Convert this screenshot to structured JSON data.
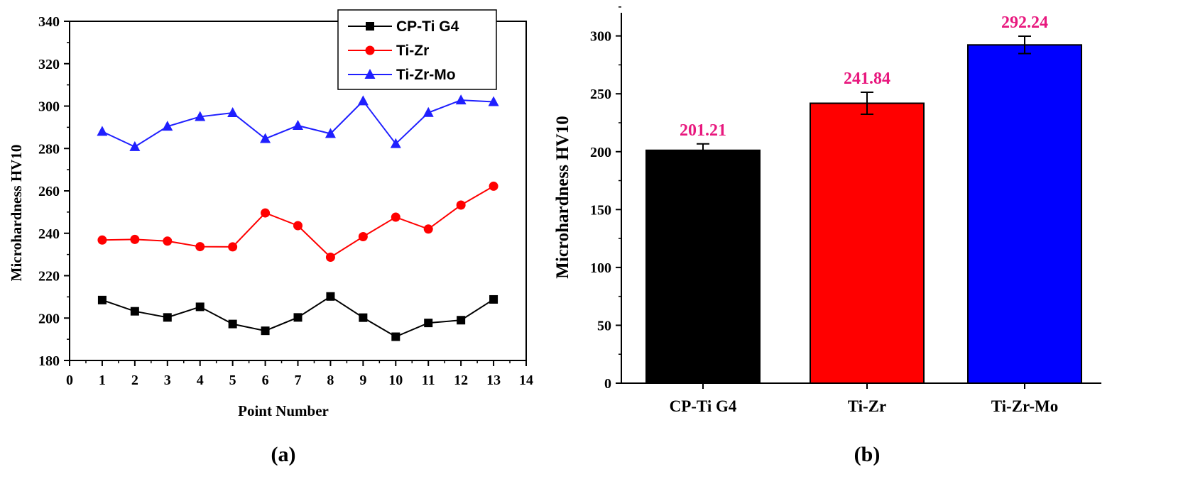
{
  "chart_data": [
    {
      "panel": "(a)",
      "type": "line",
      "xlabel": "Point Number",
      "ylabel": "Microhardness HV10",
      "xlim": [
        0,
        14
      ],
      "ylim": [
        180,
        340
      ],
      "xticks": [
        0,
        1,
        2,
        3,
        4,
        5,
        6,
        7,
        8,
        9,
        10,
        11,
        12,
        13,
        14
      ],
      "yticks": [
        180,
        200,
        220,
        240,
        260,
        280,
        300,
        320,
        340
      ],
      "legend_position": "top-right",
      "x": [
        1,
        2,
        3,
        4,
        5,
        6,
        7,
        8,
        9,
        10,
        11,
        12,
        13
      ],
      "series": [
        {
          "name": "CP-Ti G4",
          "color": "#000000",
          "marker": "square",
          "values": [
            208.5,
            203.2,
            200.3,
            205.3,
            197.2,
            194.0,
            200.3,
            210.2,
            200.2,
            191.2,
            197.7,
            199.0,
            208.8
          ]
        },
        {
          "name": "Ti-Zr",
          "color": "#ff0000",
          "marker": "circle",
          "values": [
            236.8,
            237.1,
            236.3,
            233.7,
            233.6,
            249.6,
            243.6,
            228.7,
            238.4,
            247.6,
            242.0,
            253.3,
            262.2
          ]
        },
        {
          "name": "Ti-Zr-Mo",
          "color": "#1f1fff",
          "marker": "triangle",
          "values": [
            288.0,
            280.8,
            290.4,
            295.0,
            296.8,
            284.6,
            290.8,
            287.0,
            302.4,
            282.2,
            296.9,
            302.8,
            302.0
          ]
        }
      ]
    },
    {
      "panel": "(b)",
      "type": "bar",
      "xlabel": "",
      "ylabel": "Microhardness HV10",
      "ylim": [
        0,
        320
      ],
      "yticks": [
        0,
        50,
        100,
        150,
        200,
        250,
        300
      ],
      "categories": [
        "CP-Ti G4",
        "Ti-Zr",
        "Ti-Zr-Mo"
      ],
      "values": [
        201.21,
        241.84,
        292.24
      ],
      "value_labels": [
        "201.21",
        "241.84",
        "292.24"
      ],
      "errors": [
        5.5,
        9.5,
        7.5
      ],
      "colors": [
        "#000000",
        "#ff0000",
        "#0000ff"
      ],
      "label_color": "#e8187e"
    }
  ]
}
